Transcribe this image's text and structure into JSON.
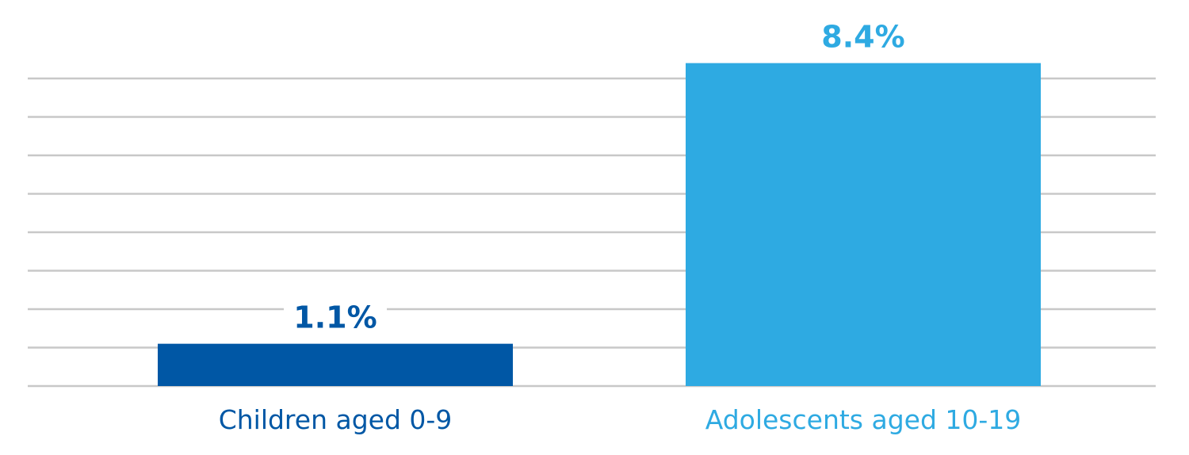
{
  "chart_data": {
    "type": "bar",
    "categories": [
      "Children aged 0-9",
      "Adolescents aged 10-19"
    ],
    "values": [
      1.1,
      8.4
    ],
    "value_labels": [
      "1.1%",
      "8.4%"
    ],
    "colors": [
      "#0057a5",
      "#2eaae2"
    ],
    "ylim": [
      0,
      8
    ],
    "grid": true,
    "gridline_step": 1,
    "legend": "none",
    "title": "",
    "xlabel": "",
    "ylabel": ""
  }
}
